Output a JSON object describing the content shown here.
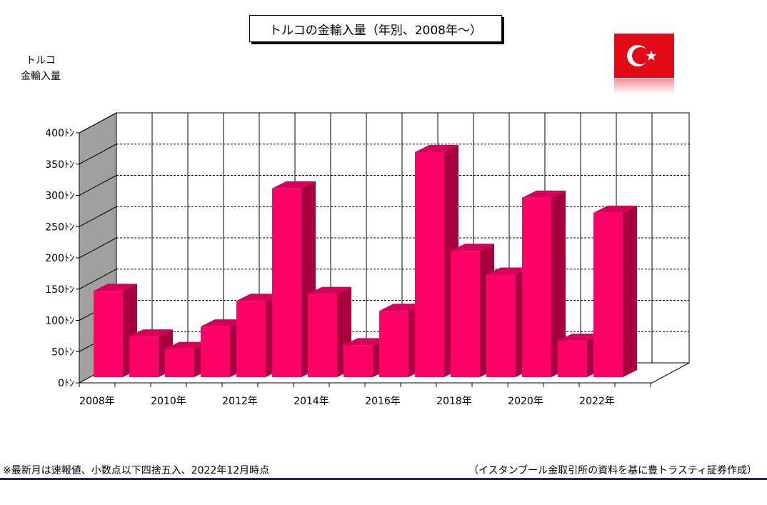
{
  "title": "トルコの金輸入量（年別、2008年～）",
  "flag": {
    "name": "turkey-flag-icon",
    "red": "#e30a17",
    "white": "#ffffff"
  },
  "ylabel_line1": "トルコ",
  "ylabel_line2": "金輸入量",
  "footnote": "※最新月は速報値、小数点以下四捨五入、2022年12月時点",
  "source": "（イスタンブール金取引所の資料を基に豊トラスティ証券作成）",
  "colors": {
    "bar_front": "#ff0066",
    "bar_side": "#a8003f",
    "bar_top": "#d6005a",
    "left_wall": "#a0a0a0"
  },
  "chart_data": {
    "type": "bar",
    "categories": [
      "2008年",
      "2009年",
      "2010年",
      "2011年",
      "2012年",
      "2013年",
      "2014年",
      "2015年",
      "2016年",
      "2017年",
      "2018年",
      "2019年",
      "2020年",
      "2021年",
      "2022年"
    ],
    "x_tick_labels": [
      "2008年",
      "2010年",
      "2012年",
      "2014年",
      "2016年",
      "2018年",
      "2020年",
      "2022年"
    ],
    "y_tick_labels": [
      "0ﾄﾝ",
      "50ﾄﾝ",
      "100ﾄﾝ",
      "150ﾄﾝ",
      "200ﾄﾝ",
      "250ﾄﾝ",
      "300ﾄﾝ",
      "350ﾄﾝ",
      "400ﾄﾝ"
    ],
    "values": [
      138,
      65,
      45,
      81,
      122,
      302,
      133,
      51,
      106,
      360,
      202,
      164,
      287,
      58,
      263
    ],
    "ylim": [
      0,
      400
    ],
    "grid": true,
    "xlabel": "",
    "ylabel": "トルコ 金輸入量",
    "legend": "none"
  }
}
